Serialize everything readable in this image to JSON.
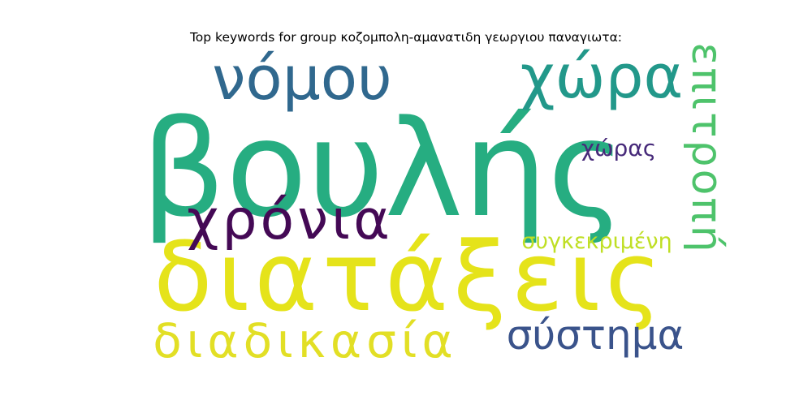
{
  "title": "Top keywords for group κοζομπολη-αμανατιδη γεωργιου παναγιωτα:",
  "words": [
    {
      "text": "βουλής",
      "color": "#26ad81"
    },
    {
      "text": "διατάξεις",
      "color": "#e5e31a"
    },
    {
      "text": "νόμου",
      "color": "#30688e"
    },
    {
      "text": "χώρα",
      "color": "#22988a"
    },
    {
      "text": "χρόνια",
      "color": "#440955"
    },
    {
      "text": "επιτροπή",
      "color": "#4ec36b"
    },
    {
      "text": "χώρας",
      "color": "#472a7a"
    },
    {
      "text": "συγκεκριμένη",
      "color": "#bfdf24"
    },
    {
      "text": "διαδικασία",
      "color": "#e2df25"
    },
    {
      "text": "σύστημα",
      "color": "#3a538b"
    }
  ]
}
